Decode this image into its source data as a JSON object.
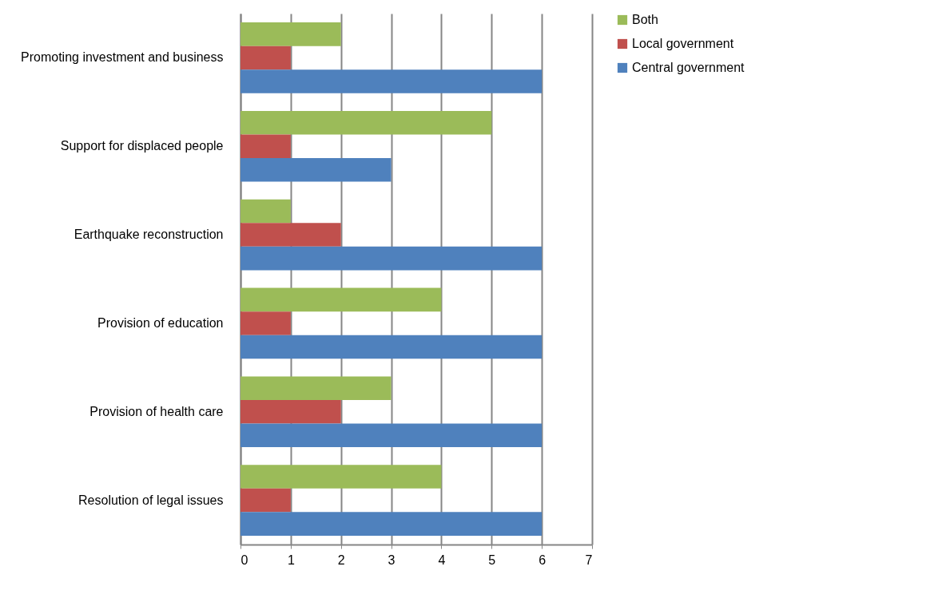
{
  "chart_data": {
    "type": "bar",
    "orientation": "horizontal",
    "categories": [
      "Promoting investment and business",
      "Support for displaced people",
      "Earthquake reconstruction",
      "Provision of education",
      "Provision of health care",
      "Resolution of legal issues"
    ],
    "series": [
      {
        "name": "Both",
        "color": "#9bbb59",
        "values": [
          2,
          5,
          1,
          4,
          3,
          4
        ]
      },
      {
        "name": "Local government",
        "color": "#c0504d",
        "values": [
          1,
          1,
          2,
          1,
          2,
          1
        ]
      },
      {
        "name": "Central government",
        "color": "#4f81bd",
        "values": [
          6,
          3,
          6,
          6,
          6,
          6
        ]
      }
    ],
    "xlim": [
      0,
      7
    ],
    "xticks": [
      0,
      1,
      2,
      3,
      4,
      5,
      6,
      7
    ],
    "grid": "x",
    "legend": "right"
  }
}
